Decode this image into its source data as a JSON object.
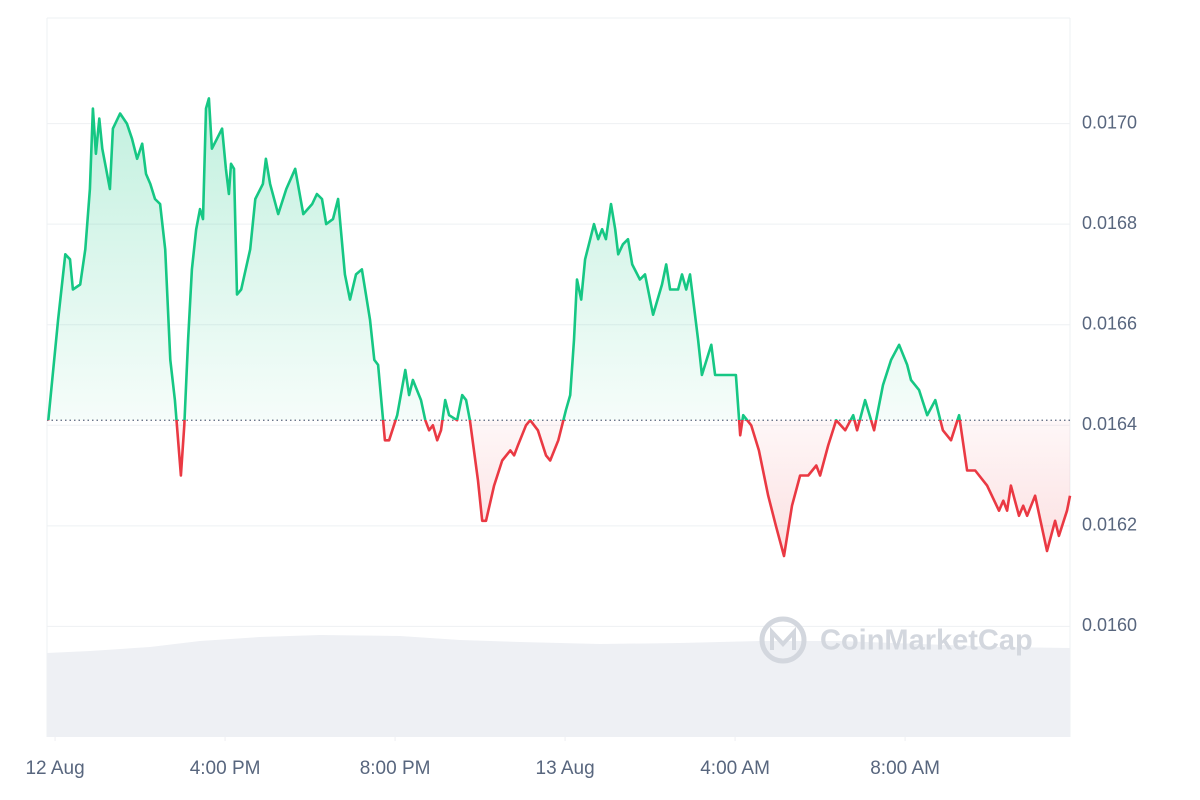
{
  "chart_data": {
    "type": "line",
    "watermark": "CoinMarketCap",
    "up_color": "#16c784",
    "down_color": "#ea3943",
    "baseline": 0.01641,
    "grid": true,
    "xlim": [
      11.81,
      35.88
    ],
    "xticks": [
      {
        "value": 12,
        "label": "12 Aug"
      },
      {
        "value": 16,
        "label": "4:00 PM"
      },
      {
        "value": 20,
        "label": "8:00 PM"
      },
      {
        "value": 24,
        "label": "13 Aug"
      },
      {
        "value": 28,
        "label": "4:00 AM"
      },
      {
        "value": 32,
        "label": "8:00 AM"
      }
    ],
    "ylim": [
      0.01578,
      0.01721
    ],
    "yticks": [
      {
        "value": 0.016,
        "label": "0.0160"
      },
      0.0162,
      0.0164,
      0.0166,
      0.0168,
      {
        "value": 0.017,
        "label": "0.0170"
      }
    ],
    "x": [
      11.84,
      12.07,
      12.24,
      12.35,
      12.42,
      12.59,
      12.71,
      12.82,
      12.89,
      12.96,
      13.04,
      13.11,
      13.2,
      13.29,
      13.36,
      13.53,
      13.69,
      13.81,
      13.93,
      14.05,
      14.14,
      14.24,
      14.35,
      14.47,
      14.59,
      14.71,
      14.82,
      14.96,
      15.04,
      15.13,
      15.22,
      15.32,
      15.41,
      15.48,
      15.55,
      15.62,
      15.69,
      15.81,
      15.93,
      16.02,
      16.09,
      16.14,
      16.21,
      16.28,
      16.38,
      16.59,
      16.71,
      16.89,
      16.96,
      17.06,
      17.25,
      17.44,
      17.65,
      17.84,
      18.05,
      18.16,
      18.28,
      18.38,
      18.54,
      18.66,
      18.82,
      18.94,
      19.08,
      19.22,
      19.41,
      19.51,
      19.6,
      19.76,
      19.86,
      20.05,
      20.24,
      20.33,
      20.42,
      20.61,
      20.71,
      20.8,
      20.89,
      20.99,
      21.08,
      21.18,
      21.27,
      21.46,
      21.58,
      21.67,
      21.76,
      21.95,
      22.05,
      22.14,
      22.33,
      22.52,
      22.71,
      22.8,
      22.89,
      23.08,
      23.18,
      23.36,
      23.55,
      23.65,
      23.84,
      24.02,
      24.12,
      24.21,
      24.28,
      24.38,
      24.47,
      24.59,
      24.68,
      24.78,
      24.87,
      24.96,
      25.08,
      25.18,
      25.25,
      25.36,
      25.48,
      25.58,
      25.76,
      25.88,
      26.07,
      26.28,
      26.38,
      26.47,
      26.66,
      26.75,
      26.85,
      26.94,
      27.13,
      27.22,
      27.44,
      27.53,
      27.74,
      28.02,
      28.12,
      28.19,
      28.38,
      28.56,
      28.78,
      28.96,
      29.15,
      29.34,
      29.53,
      29.72,
      29.91,
      30.0,
      30.19,
      30.38,
      30.59,
      30.78,
      30.87,
      31.06,
      31.27,
      31.48,
      31.67,
      31.86,
      32.05,
      32.14,
      32.33,
      32.52,
      32.71,
      32.89,
      33.08,
      33.27,
      33.46,
      33.65,
      33.93,
      34.21,
      34.31,
      34.4,
      34.49,
      34.68,
      34.78,
      34.87,
      35.06,
      35.34,
      35.53,
      35.62,
      35.81,
      35.88
    ],
    "values": [
      0.01641,
      0.01661,
      0.01674,
      0.01673,
      0.01667,
      0.01668,
      0.01675,
      0.01687,
      0.01703,
      0.01694,
      0.01701,
      0.01695,
      0.01691,
      0.01687,
      0.01699,
      0.01702,
      0.017,
      0.01697,
      0.01693,
      0.01696,
      0.0169,
      0.01688,
      0.01685,
      0.01684,
      0.01675,
      0.01653,
      0.01645,
      0.0163,
      0.0164,
      0.01657,
      0.01671,
      0.01679,
      0.01683,
      0.01681,
      0.01703,
      0.01705,
      0.01695,
      0.01697,
      0.01699,
      0.01691,
      0.01686,
      0.01692,
      0.01691,
      0.01666,
      0.01667,
      0.01675,
      0.01685,
      0.01688,
      0.01693,
      0.01688,
      0.01682,
      0.01687,
      0.01691,
      0.01682,
      0.01684,
      0.01686,
      0.01685,
      0.0168,
      0.01681,
      0.01685,
      0.0167,
      0.01665,
      0.0167,
      0.01671,
      0.01661,
      0.01653,
      0.01652,
      0.01637,
      0.01637,
      0.01642,
      0.01651,
      0.01646,
      0.01649,
      0.01645,
      0.01641,
      0.01639,
      0.0164,
      0.01637,
      0.01639,
      0.01645,
      0.01642,
      0.01641,
      0.01646,
      0.01645,
      0.01641,
      0.01629,
      0.01621,
      0.01621,
      0.01628,
      0.01633,
      0.01635,
      0.01634,
      0.01636,
      0.0164,
      0.01641,
      0.01639,
      0.01634,
      0.01633,
      0.01637,
      0.01643,
      0.01646,
      0.01657,
      0.01669,
      0.01665,
      0.01673,
      0.01677,
      0.0168,
      0.01677,
      0.01679,
      0.01677,
      0.01684,
      0.01679,
      0.01674,
      0.01676,
      0.01677,
      0.01672,
      0.01669,
      0.0167,
      0.01662,
      0.01668,
      0.01672,
      0.01667,
      0.01667,
      0.0167,
      0.01667,
      0.0167,
      0.01657,
      0.0165,
      0.01656,
      0.0165,
      0.0165,
      0.0165,
      0.01638,
      0.01642,
      0.0164,
      0.01635,
      0.01626,
      0.0162,
      0.01614,
      0.01624,
      0.0163,
      0.0163,
      0.01632,
      0.0163,
      0.01636,
      0.01641,
      0.01639,
      0.01642,
      0.01639,
      0.01645,
      0.01639,
      0.01648,
      0.01653,
      0.01656,
      0.01652,
      0.01649,
      0.01647,
      0.01642,
      0.01645,
      0.01639,
      0.01637,
      0.01642,
      0.01631,
      0.01631,
      0.01628,
      0.01623,
      0.01625,
      0.01623,
      0.01628,
      0.01622,
      0.01624,
      0.01622,
      0.01626,
      0.01615,
      0.01621,
      0.01618,
      0.01623,
      0.01626
    ]
  }
}
